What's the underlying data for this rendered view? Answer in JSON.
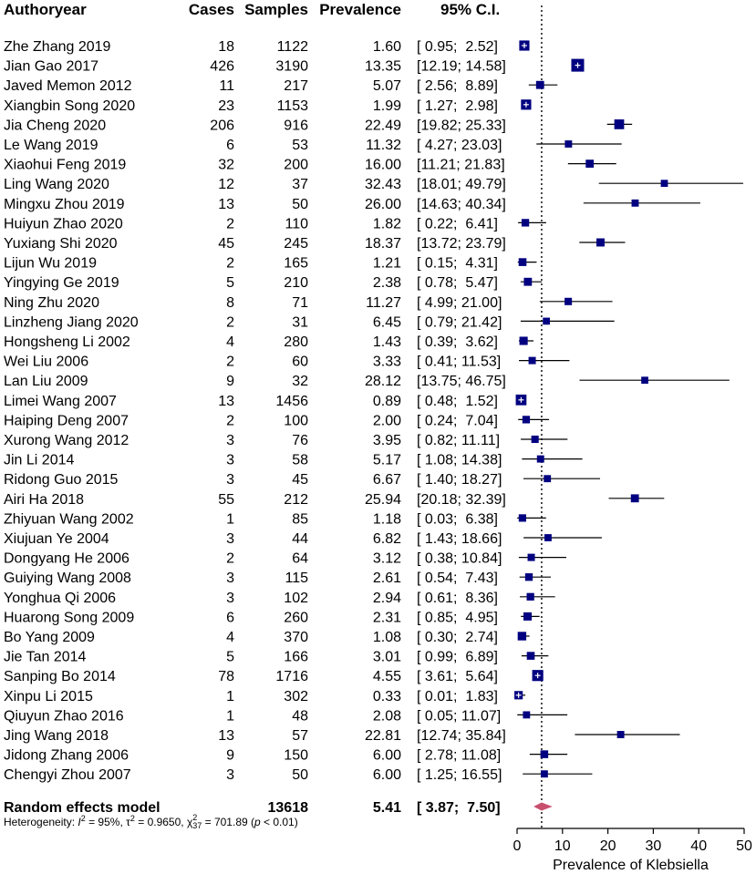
{
  "chart_data": {
    "type": "forest",
    "title": "",
    "columns": {
      "study": "Authoryear",
      "cases": "Cases",
      "samples": "Samples",
      "prevalence": "Prevalence",
      "ci": "95% C.I."
    },
    "studies": [
      {
        "name": "Zhe Zhang 2019",
        "cases": "18",
        "samples": "1122",
        "prev": "1.60",
        "ci": "[ 0.95;  2.52]",
        "est": 1.6,
        "lo": 0.95,
        "hi": 2.52,
        "wt": 1122
      },
      {
        "name": "Jian Gao 2017",
        "cases": "426",
        "samples": "3190",
        "prev": "13.35",
        "ci": "[12.19; 14.58]",
        "est": 13.35,
        "lo": 12.19,
        "hi": 14.58,
        "wt": 3190
      },
      {
        "name": "Javed Memon 2012",
        "cases": "11",
        "samples": "217",
        "prev": "5.07",
        "ci": "[ 2.56;  8.89]",
        "est": 5.07,
        "lo": 2.56,
        "hi": 8.89,
        "wt": 217
      },
      {
        "name": "Xiangbin Song 2020",
        "cases": "23",
        "samples": "1153",
        "prev": "1.99",
        "ci": "[ 1.27;  2.98]",
        "est": 1.99,
        "lo": 1.27,
        "hi": 2.98,
        "wt": 1153
      },
      {
        "name": "Jia Cheng 2020",
        "cases": "206",
        "samples": "916",
        "prev": "22.49",
        "ci": "[19.82; 25.33]",
        "est": 22.49,
        "lo": 19.82,
        "hi": 25.33,
        "wt": 916
      },
      {
        "name": "Le Wang 2019",
        "cases": "6",
        "samples": "53",
        "prev": "11.32",
        "ci": "[ 4.27; 23.03]",
        "est": 11.32,
        "lo": 4.27,
        "hi": 23.03,
        "wt": 53
      },
      {
        "name": "Xiaohui Feng 2019",
        "cases": "32",
        "samples": "200",
        "prev": "16.00",
        "ci": "[11.21; 21.83]",
        "est": 16.0,
        "lo": 11.21,
        "hi": 21.83,
        "wt": 200
      },
      {
        "name": "Ling Wang 2020",
        "cases": "12",
        "samples": "37",
        "prev": "32.43",
        "ci": "[18.01; 49.79]",
        "est": 32.43,
        "lo": 18.01,
        "hi": 49.79,
        "wt": 37
      },
      {
        "name": "Mingxu Zhou 2019",
        "cases": "13",
        "samples": "50",
        "prev": "26.00",
        "ci": "[14.63; 40.34]",
        "est": 26.0,
        "lo": 14.63,
        "hi": 40.34,
        "wt": 50
      },
      {
        "name": "Huiyun Zhao 2020",
        "cases": "2",
        "samples": "110",
        "prev": "1.82",
        "ci": "[ 0.22;  6.41]",
        "est": 1.82,
        "lo": 0.22,
        "hi": 6.41,
        "wt": 110
      },
      {
        "name": "Yuxiang Shi 2020",
        "cases": "45",
        "samples": "245",
        "prev": "18.37",
        "ci": "[13.72; 23.79]",
        "est": 18.37,
        "lo": 13.72,
        "hi": 23.79,
        "wt": 245
      },
      {
        "name": "Lijun Wu 2019",
        "cases": "2",
        "samples": "165",
        "prev": "1.21",
        "ci": "[ 0.15;  4.31]",
        "est": 1.21,
        "lo": 0.15,
        "hi": 4.31,
        "wt": 165
      },
      {
        "name": "Yingying Ge 2019",
        "cases": "5",
        "samples": "210",
        "prev": "2.38",
        "ci": "[ 0.78;  5.47]",
        "est": 2.38,
        "lo": 0.78,
        "hi": 5.47,
        "wt": 210
      },
      {
        "name": "Ning Zhu 2020",
        "cases": "8",
        "samples": "71",
        "prev": "11.27",
        "ci": "[ 4.99; 21.00]",
        "est": 11.27,
        "lo": 4.99,
        "hi": 21.0,
        "wt": 71
      },
      {
        "name": "Linzheng Jiang 2020",
        "cases": "2",
        "samples": "31",
        "prev": "6.45",
        "ci": "[ 0.79; 21.42]",
        "est": 6.45,
        "lo": 0.79,
        "hi": 21.42,
        "wt": 31
      },
      {
        "name": "Hongsheng Li 2002",
        "cases": "4",
        "samples": "280",
        "prev": "1.43",
        "ci": "[ 0.39;  3.62]",
        "est": 1.43,
        "lo": 0.39,
        "hi": 3.62,
        "wt": 280
      },
      {
        "name": "Wei Liu 2006",
        "cases": "2",
        "samples": "60",
        "prev": "3.33",
        "ci": "[ 0.41; 11.53]",
        "est": 3.33,
        "lo": 0.41,
        "hi": 11.53,
        "wt": 60
      },
      {
        "name": "Lan Liu 2009",
        "cases": "9",
        "samples": "32",
        "prev": "28.12",
        "ci": "[13.75; 46.75]",
        "est": 28.12,
        "lo": 13.75,
        "hi": 46.75,
        "wt": 32
      },
      {
        "name": "Limei Wang 2007",
        "cases": "13",
        "samples": "1456",
        "prev": "0.89",
        "ci": "[ 0.48;  1.52]",
        "est": 0.89,
        "lo": 0.48,
        "hi": 1.52,
        "wt": 1456
      },
      {
        "name": "Haiping Deng 2007",
        "cases": "2",
        "samples": "100",
        "prev": "2.00",
        "ci": "[ 0.24;  7.04]",
        "est": 2.0,
        "lo": 0.24,
        "hi": 7.04,
        "wt": 100
      },
      {
        "name": "Xurong Wang 2012",
        "cases": "3",
        "samples": "76",
        "prev": "3.95",
        "ci": "[ 0.82; 11.11]",
        "est": 3.95,
        "lo": 0.82,
        "hi": 11.11,
        "wt": 76
      },
      {
        "name": "Jin Li 2014",
        "cases": "3",
        "samples": "58",
        "prev": "5.17",
        "ci": "[ 1.08; 14.38]",
        "est": 5.17,
        "lo": 1.08,
        "hi": 14.38,
        "wt": 58
      },
      {
        "name": "Ridong Guo 2015",
        "cases": "3",
        "samples": "45",
        "prev": "6.67",
        "ci": "[ 1.40; 18.27]",
        "est": 6.67,
        "lo": 1.4,
        "hi": 18.27,
        "wt": 45
      },
      {
        "name": "Airi Ha 2018",
        "cases": "55",
        "samples": "212",
        "prev": "25.94",
        "ci": "[20.18; 32.39]",
        "est": 25.94,
        "lo": 20.18,
        "hi": 32.39,
        "wt": 212
      },
      {
        "name": "Zhiyuan Wang 2002",
        "cases": "1",
        "samples": "85",
        "prev": "1.18",
        "ci": "[ 0.03;  6.38]",
        "est": 1.18,
        "lo": 0.03,
        "hi": 6.38,
        "wt": 85
      },
      {
        "name": "Xiujuan Ye 2004",
        "cases": "3",
        "samples": "44",
        "prev": "6.82",
        "ci": "[ 1.43; 18.66]",
        "est": 6.82,
        "lo": 1.43,
        "hi": 18.66,
        "wt": 44
      },
      {
        "name": "Dongyang He 2006",
        "cases": "2",
        "samples": "64",
        "prev": "3.12",
        "ci": "[ 0.38; 10.84]",
        "est": 3.12,
        "lo": 0.38,
        "hi": 10.84,
        "wt": 64
      },
      {
        "name": "Guiying Wang 2008",
        "cases": "3",
        "samples": "115",
        "prev": "2.61",
        "ci": "[ 0.54;  7.43]",
        "est": 2.61,
        "lo": 0.54,
        "hi": 7.43,
        "wt": 115
      },
      {
        "name": "Yonghua Qi 2006",
        "cases": "3",
        "samples": "102",
        "prev": "2.94",
        "ci": "[ 0.61;  8.36]",
        "est": 2.94,
        "lo": 0.61,
        "hi": 8.36,
        "wt": 102
      },
      {
        "name": "Huarong Song 2009",
        "cases": "6",
        "samples": "260",
        "prev": "2.31",
        "ci": "[ 0.85;  4.95]",
        "est": 2.31,
        "lo": 0.85,
        "hi": 4.95,
        "wt": 260
      },
      {
        "name": "Bo Yang 2009",
        "cases": "4",
        "samples": "370",
        "prev": "1.08",
        "ci": "[ 0.30;  2.74]",
        "est": 1.08,
        "lo": 0.3,
        "hi": 2.74,
        "wt": 370
      },
      {
        "name": "Jie Tan 2014",
        "cases": "5",
        "samples": "166",
        "prev": "3.01",
        "ci": "[ 0.99;  6.89]",
        "est": 3.01,
        "lo": 0.99,
        "hi": 6.89,
        "wt": 166
      },
      {
        "name": "Sanping Bo 2014",
        "cases": "78",
        "samples": "1716",
        "prev": "4.55",
        "ci": "[ 3.61;  5.64]",
        "est": 4.55,
        "lo": 3.61,
        "hi": 5.64,
        "wt": 1716
      },
      {
        "name": "Xinpu Li 2015",
        "cases": "1",
        "samples": "302",
        "prev": "0.33",
        "ci": "[ 0.01;  1.83]",
        "est": 0.33,
        "lo": 0.01,
        "hi": 1.83,
        "wt": 302
      },
      {
        "name": "Qiuyun Zhao 2016",
        "cases": "1",
        "samples": "48",
        "prev": "2.08",
        "ci": "[ 0.05; 11.07]",
        "est": 2.08,
        "lo": 0.05,
        "hi": 11.07,
        "wt": 48
      },
      {
        "name": "Jing Wang 2018",
        "cases": "13",
        "samples": "57",
        "prev": "22.81",
        "ci": "[12.74; 35.84]",
        "est": 22.81,
        "lo": 12.74,
        "hi": 35.84,
        "wt": 57
      },
      {
        "name": "Jidong Zhang 2006",
        "cases": "9",
        "samples": "150",
        "prev": "6.00",
        "ci": "[ 2.78; 11.08]",
        "est": 6.0,
        "lo": 2.78,
        "hi": 11.08,
        "wt": 150
      },
      {
        "name": "Chengyi Zhou 2007",
        "cases": "3",
        "samples": "50",
        "prev": "6.00",
        "ci": "[ 1.25; 16.55]",
        "est": 6.0,
        "lo": 1.25,
        "hi": 16.55,
        "wt": 50
      }
    ],
    "summary": {
      "label": "Random effects model",
      "samples": "13618",
      "prev": "5.41",
      "ci": "[ 3.87;  7.50]",
      "est": 5.41,
      "lo": 3.87,
      "hi": 7.5
    },
    "heterogeneity": {
      "prefix": "Heterogeneity: ",
      "i2_label": "I",
      "i2_value": " = 95%, ",
      "tau_label": "τ",
      "tau_value": " = 0.9650, ",
      "chi_label": "χ",
      "chi_df": "37",
      "chi_value": " = 701.89 (",
      "p_label": "p",
      "p_value": " < 0.01)",
      "sup2": "2"
    },
    "x_axis": {
      "label": "Prevalence of Klebsiella",
      "ticks": [
        "0",
        "10",
        "20",
        "30",
        "40",
        "50"
      ],
      "range": [
        0,
        50
      ]
    },
    "colors": {
      "box": "#000080",
      "diamond": "#c8506e",
      "line": "#000000"
    }
  }
}
